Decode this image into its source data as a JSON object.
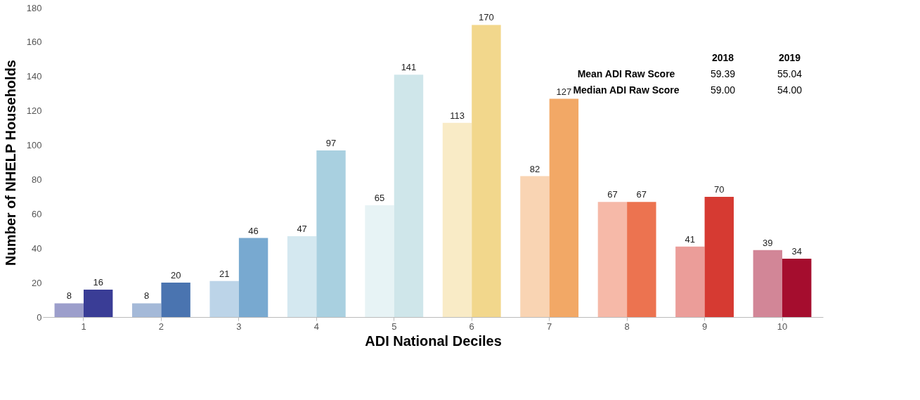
{
  "chart_data": {
    "type": "bar",
    "xlabel": "ADI National Deciles",
    "ylabel": "Number of NHELP Households",
    "categories": [
      "1",
      "2",
      "3",
      "4",
      "5",
      "6",
      "7",
      "8",
      "9",
      "10"
    ],
    "series": [
      {
        "colors": [
          "#9c9ecb",
          "#a4b9d8",
          "#bcd4e8",
          "#d4e8f0",
          "#e7f3f5",
          "#f9ebc6",
          "#f9d4b3",
          "#f6b9a8",
          "#eb9d99",
          "#d28697"
        ],
        "values": [
          8,
          8,
          21,
          47,
          65,
          113,
          82,
          67,
          41,
          39
        ]
      },
      {
        "colors": [
          "#3a3d96",
          "#4a74b0",
          "#78a9d0",
          "#a9d0e0",
          "#cfe6ea",
          "#f2d78c",
          "#f2a866",
          "#ec7350",
          "#d63a32",
          "#a50d2e"
        ],
        "values": [
          16,
          20,
          46,
          97,
          141,
          170,
          127,
          67,
          70,
          34
        ]
      }
    ],
    "ylim": [
      0,
      180
    ],
    "yticks": [
      0,
      20,
      40,
      60,
      80,
      100,
      120,
      140,
      160,
      180
    ],
    "grid": false,
    "data_labels": true,
    "annotations": [
      "2018",
      "2019",
      "Mean ADI Raw Score",
      "59.39",
      "55.04",
      "Median ADI Raw Score",
      "59.00",
      "54.00"
    ]
  }
}
